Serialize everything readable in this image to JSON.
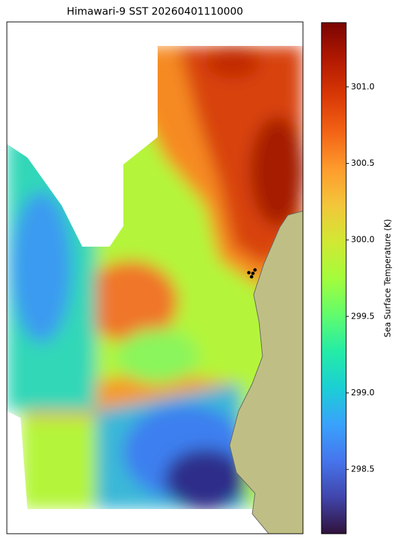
{
  "chart_data": {
    "type": "heatmap",
    "title": "Himawari-9 SST 20260401110000",
    "colorbar": {
      "label": "Sea Surface Temperature (K)",
      "colormap": "turbo",
      "lim": [
        298.08,
        301.42
      ],
      "ticks": [
        {
          "value": 298.5,
          "label": "298.5"
        },
        {
          "value": 299,
          "label": "299.0"
        },
        {
          "value": 299.5,
          "label": "299.5"
        },
        {
          "value": 300,
          "label": "300.0"
        },
        {
          "value": 300.5,
          "label": "300.5"
        },
        {
          "value": 301,
          "label": "301.0"
        }
      ]
    }
  }
}
